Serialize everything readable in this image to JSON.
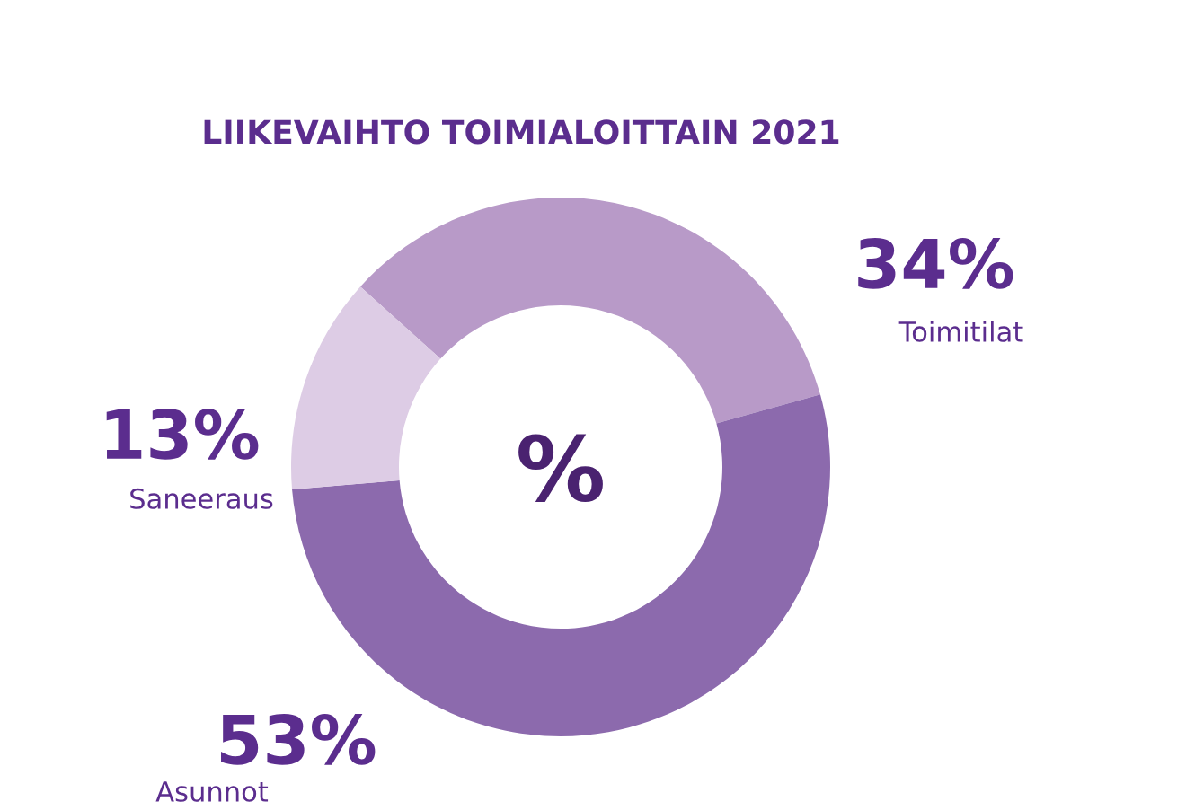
{
  "chart_data": {
    "type": "donut",
    "title": "LIIKEVAIHTO TOIMIALOITTAIN 2021",
    "categories": [
      "Toimitilat",
      "Asunnot",
      "Saneeraus"
    ],
    "values": [
      34,
      53,
      13
    ],
    "colors": [
      "#b89ac8",
      "#8c6aad",
      "#ddcce5"
    ],
    "value_labels": [
      "34%",
      "53%",
      "13%"
    ],
    "annotations": [
      "%"
    ]
  }
}
